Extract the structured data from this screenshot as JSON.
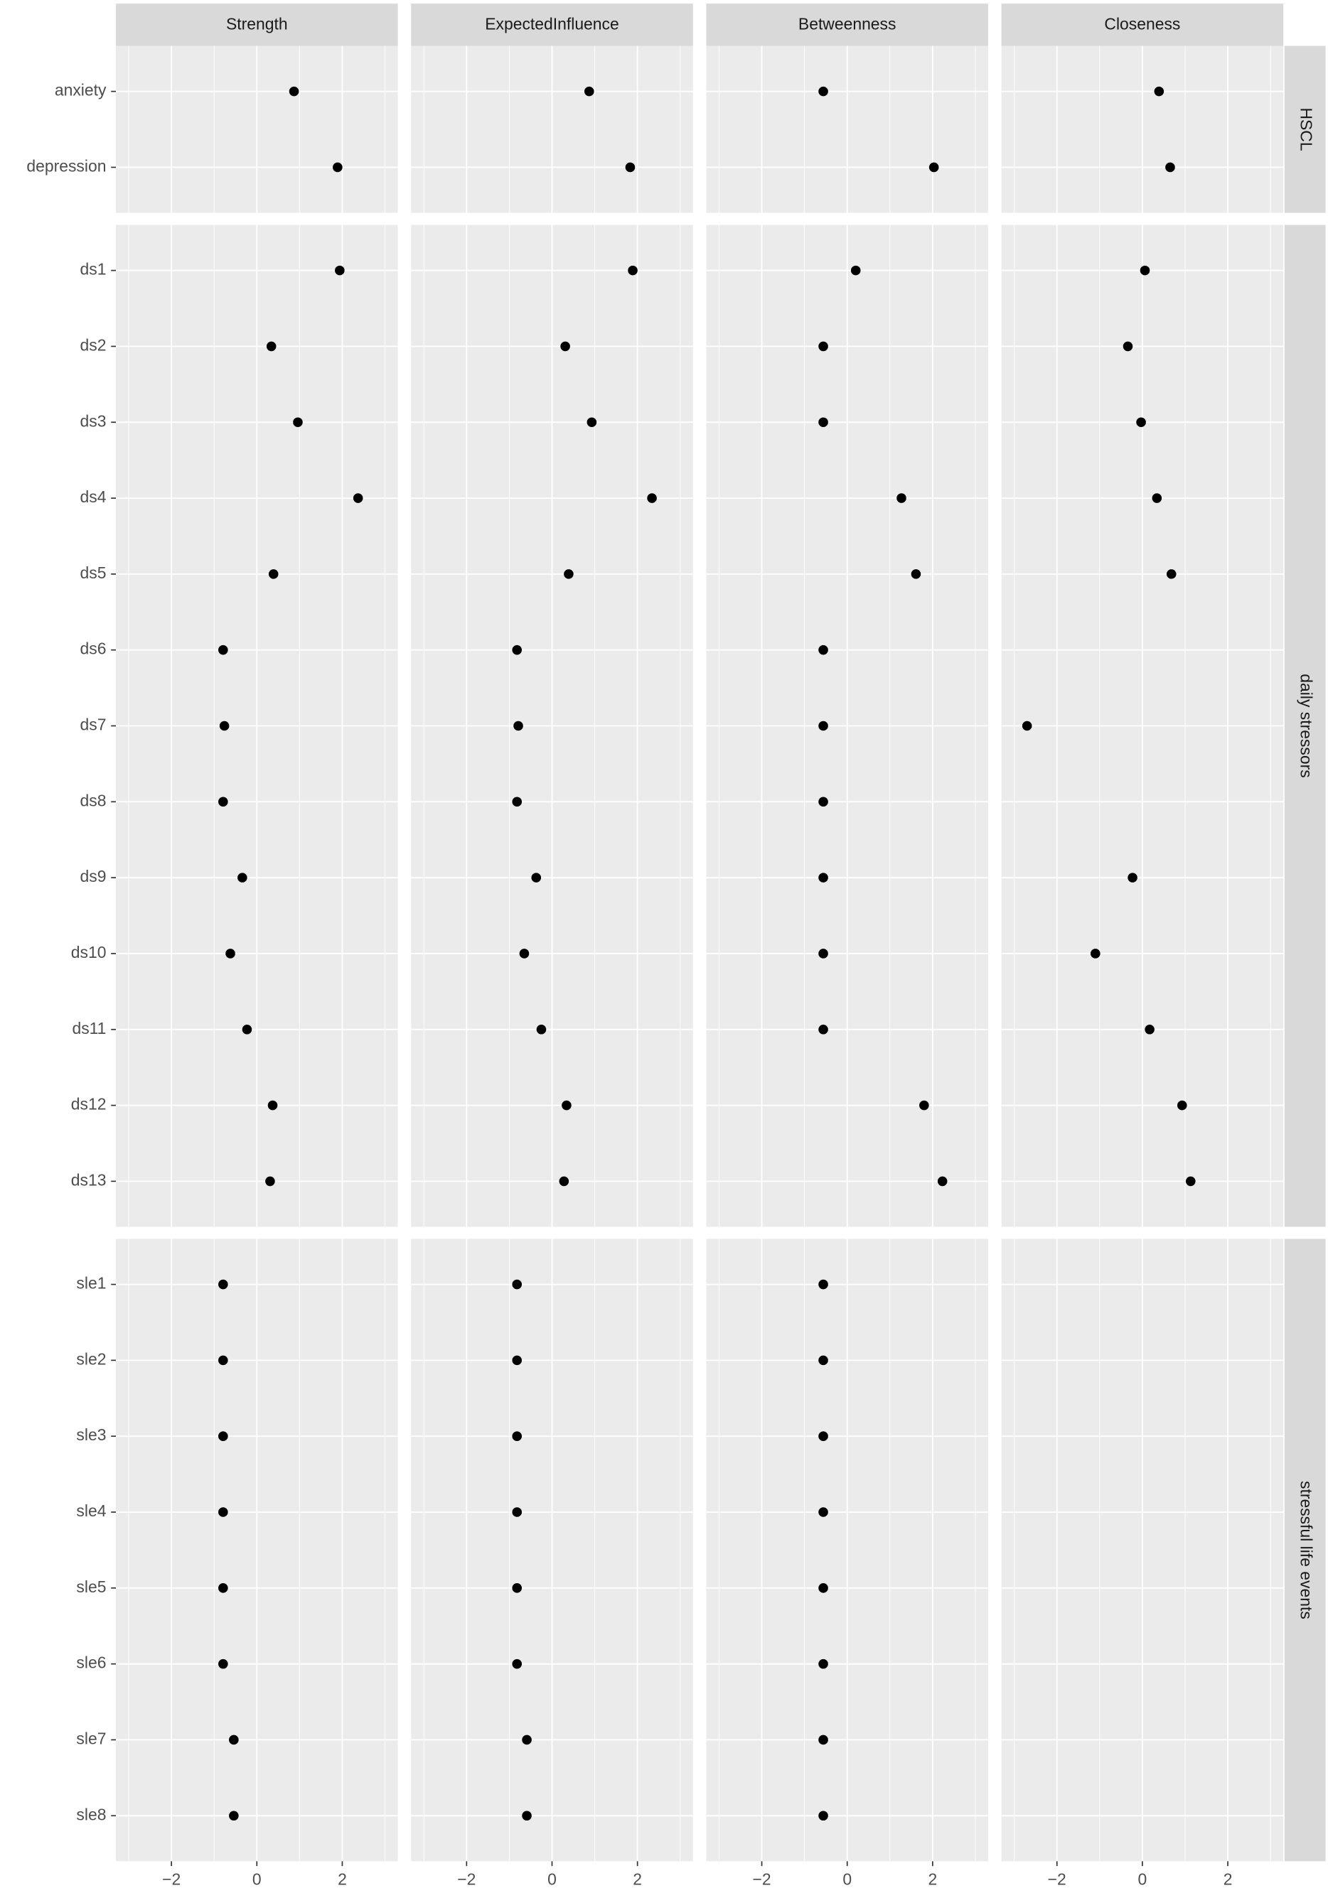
{
  "chart_data": {
    "type": "dot",
    "columns": [
      "Strength",
      "ExpectedInfluence",
      "Betweenness",
      "Closeness"
    ],
    "rows": [
      {
        "name": "HSCL",
        "categories": [
          "anxiety",
          "depression"
        ],
        "values": [
          [
            0.87,
            1.89
          ],
          [
            0.87,
            1.83
          ],
          [
            -0.56,
            2.03
          ],
          [
            0.39,
            0.65
          ]
        ]
      },
      {
        "name": "daily stressors",
        "categories": [
          "ds1",
          "ds2",
          "ds3",
          "ds4",
          "ds5",
          "ds6",
          "ds7",
          "ds8",
          "ds9",
          "ds10",
          "ds11",
          "ds12",
          "ds13"
        ],
        "values": [
          [
            1.94,
            0.34,
            0.96,
            2.37,
            0.39,
            -0.79,
            -0.76,
            -0.79,
            -0.34,
            -0.62,
            -0.23,
            0.37,
            0.31
          ],
          [
            1.89,
            0.31,
            0.93,
            2.34,
            0.39,
            -0.82,
            -0.79,
            -0.82,
            -0.37,
            -0.65,
            -0.25,
            0.34,
            0.28
          ],
          [
            0.2,
            -0.56,
            -0.56,
            1.27,
            1.61,
            -0.56,
            -0.56,
            -0.56,
            -0.56,
            -0.56,
            -0.56,
            1.8,
            2.23
          ],
          [
            0.06,
            -0.34,
            -0.03,
            0.34,
            0.68,
            null,
            -2.7,
            null,
            -0.23,
            -1.1,
            0.17,
            0.93,
            1.13
          ]
        ]
      },
      {
        "name": "stressful life events",
        "categories": [
          "sle1",
          "sle2",
          "sle3",
          "sle4",
          "sle5",
          "sle6",
          "sle7",
          "sle8"
        ],
        "values": [
          [
            -0.79,
            -0.79,
            -0.79,
            -0.79,
            -0.79,
            -0.79,
            -0.54,
            -0.54
          ],
          [
            -0.82,
            -0.82,
            -0.82,
            -0.82,
            -0.82,
            -0.82,
            -0.59,
            -0.59
          ],
          [
            -0.56,
            -0.56,
            -0.56,
            -0.56,
            -0.56,
            -0.56,
            -0.56,
            -0.56
          ],
          [
            null,
            null,
            null,
            null,
            null,
            null,
            null,
            null
          ]
        ]
      }
    ],
    "xlim": [
      -3.3,
      3.3
    ],
    "xticks": [
      {
        "value": -2,
        "label": "−2"
      },
      0,
      2
    ],
    "grid": true,
    "color": "#000000"
  }
}
